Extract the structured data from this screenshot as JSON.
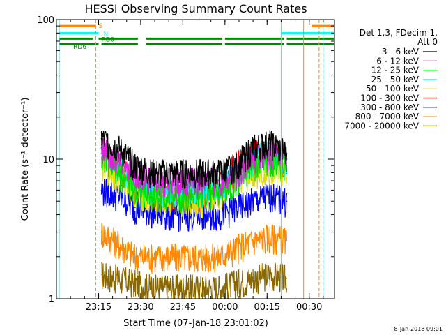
{
  "chart_data": {
    "type": "line",
    "title": "HESSI Observing Summary Count Rates",
    "xlabel": "Start Time (07-Jan-18 23:01:02)",
    "ylabel": "Count Rate (s⁻¹ detector⁻¹)",
    "y_scale": "log",
    "ylim": [
      1,
      100
    ],
    "xlim_minutes_after_2300": [
      0,
      99
    ],
    "x_ticks": [
      "23:15",
      "23:30",
      "23:45",
      "00:00",
      "00:15",
      "00:30"
    ],
    "y_ticks": [
      "1",
      "10",
      "100"
    ],
    "grid": false,
    "legend_position": "right",
    "legend_title": [
      "Det 1,3, FDecim 1,",
      "Att 0"
    ],
    "series": [
      {
        "name": "3 - 6 keV",
        "color": "#000000",
        "x": [
          "23:16",
          "23:22",
          "23:28",
          "23:34",
          "23:40",
          "23:46",
          "23:52",
          "23:58",
          "00:04",
          "00:10",
          "00:16",
          "00:22"
        ],
        "values": [
          14,
          12,
          9,
          8,
          8,
          8,
          8,
          8,
          9,
          12,
          13,
          11
        ]
      },
      {
        "name": "6 - 12 keV",
        "color": "#e020e0",
        "x": [
          "23:16",
          "23:22",
          "23:28",
          "23:34",
          "23:40",
          "23:46",
          "23:52",
          "23:58",
          "00:04",
          "00:10",
          "00:16",
          "00:22"
        ],
        "values": [
          12,
          10,
          8,
          7,
          7,
          7,
          7,
          7,
          8,
          10,
          11,
          10
        ]
      },
      {
        "name": "12 - 25 keV",
        "color": "#00dd00",
        "x": [
          "23:16",
          "23:22",
          "23:28",
          "23:34",
          "23:40",
          "23:46",
          "23:52",
          "23:58",
          "00:04",
          "00:10",
          "00:16",
          "00:22"
        ],
        "values": [
          11,
          8,
          6,
          5.5,
          5.5,
          5.5,
          5.5,
          6,
          7,
          9,
          10,
          9
        ]
      },
      {
        "name": "25 - 50 keV",
        "color": "#00ffff",
        "x": [
          "23:16",
          "23:22",
          "23:28",
          "23:34",
          "23:40",
          "23:46",
          "23:52",
          "23:58",
          "00:04",
          "00:10",
          "00:16",
          "00:22"
        ],
        "values": [
          11,
          9,
          7,
          6,
          6,
          6,
          6,
          6.5,
          8,
          10,
          11,
          10
        ]
      },
      {
        "name": "50 - 100 keV",
        "color": "#dddd00",
        "x": [
          "23:16",
          "23:22",
          "23:28",
          "23:34",
          "23:40",
          "23:46",
          "23:52",
          "23:58",
          "00:04",
          "00:10",
          "00:16",
          "00:22"
        ],
        "values": [
          9,
          7.5,
          6,
          5,
          5,
          5,
          5,
          5.5,
          7,
          8,
          8.5,
          8
        ]
      },
      {
        "name": "100 - 300 keV",
        "color": "#ff0000",
        "x": [
          "23:16",
          "23:22",
          "23:28",
          "23:34",
          "23:40",
          "23:46",
          "23:52",
          "23:58",
          "00:04",
          "00:10",
          "00:16",
          "00:22"
        ],
        "values": [
          12,
          9,
          6.5,
          5.5,
          5.5,
          5.5,
          5.5,
          6.5,
          9,
          11,
          11,
          10
        ]
      },
      {
        "name": "300 - 800 keV",
        "color": "#0000ff",
        "x": [
          "23:16",
          "23:22",
          "23:28",
          "23:34",
          "23:40",
          "23:46",
          "23:52",
          "23:58",
          "00:04",
          "00:10",
          "00:16",
          "00:22"
        ],
        "values": [
          6,
          5.5,
          4.5,
          4.2,
          4,
          4,
          4,
          4,
          4.5,
          5,
          5.5,
          5
        ]
      },
      {
        "name": "800 - 7000 keV",
        "color": "#ff8800",
        "x": [
          "23:16",
          "23:22",
          "23:28",
          "23:34",
          "23:40",
          "23:46",
          "23:52",
          "23:58",
          "00:04",
          "00:10",
          "00:16",
          "00:22"
        ],
        "values": [
          3,
          2.5,
          2,
          2,
          2,
          2,
          2,
          2,
          2.3,
          2.6,
          2.8,
          2.6
        ]
      },
      {
        "name": "7000 - 20000 keV",
        "color": "#886600",
        "x": [
          "23:16",
          "23:22",
          "23:28",
          "23:34",
          "23:40",
          "23:46",
          "23:52",
          "23:58",
          "00:04",
          "00:10",
          "00:16",
          "00:22"
        ],
        "values": [
          1.5,
          1.4,
          1.3,
          1.2,
          1.2,
          1.2,
          1.2,
          1.2,
          1.3,
          1.4,
          1.5,
          1.4
        ]
      }
    ],
    "flag_bars": [
      {
        "label": "S",
        "color": "#ff8800",
        "level": 90,
        "segments": [
          [
            "23:01",
            "23:14"
          ],
          [
            "00:31",
            "00:39"
          ]
        ]
      },
      {
        "label": "N",
        "color": "#00ffff",
        "level": 80,
        "segments": [
          [
            "23:01",
            "23:15"
          ],
          [
            "00:20",
            "00:39"
          ]
        ]
      },
      {
        "label": "RD0",
        "color": "#008800",
        "level": 73,
        "segments": [
          [
            "23:01",
            "23:13"
          ],
          [
            "23:15",
            "23:29"
          ],
          [
            "23:32",
            "23:59"
          ],
          [
            "00:00",
            "00:21"
          ],
          [
            "00:22",
            "00:39"
          ]
        ]
      },
      {
        "label": "RD6",
        "color": "#008800",
        "level": 67,
        "segments": [
          [
            "23:01",
            "23:15"
          ],
          [
            "23:16",
            "23:29"
          ],
          [
            "23:32",
            "23:59"
          ],
          [
            "00:00",
            "00:21"
          ],
          [
            "00:22",
            "00:39"
          ]
        ]
      }
    ],
    "vertical_markers": [
      {
        "time": "23:14",
        "color": "#ff8800",
        "style": "dashed"
      },
      {
        "time": "23:15.5",
        "color": "#00ffff",
        "style": "dashed"
      },
      {
        "time": "00:20",
        "color": "#00ffff",
        "style": "solid"
      },
      {
        "time": "00:28",
        "color": "#ff8800",
        "style": "solid"
      },
      {
        "time": "00:35",
        "color": "#00ffff",
        "style": "dashed"
      },
      {
        "time": "00:33.5",
        "color": "#ff8800",
        "style": "dashed"
      },
      {
        "time": "23:01",
        "color": "#00ffff",
        "style": "solid"
      }
    ]
  },
  "footer": {
    "date_stamp": "8-Jan-2018 09:01"
  }
}
